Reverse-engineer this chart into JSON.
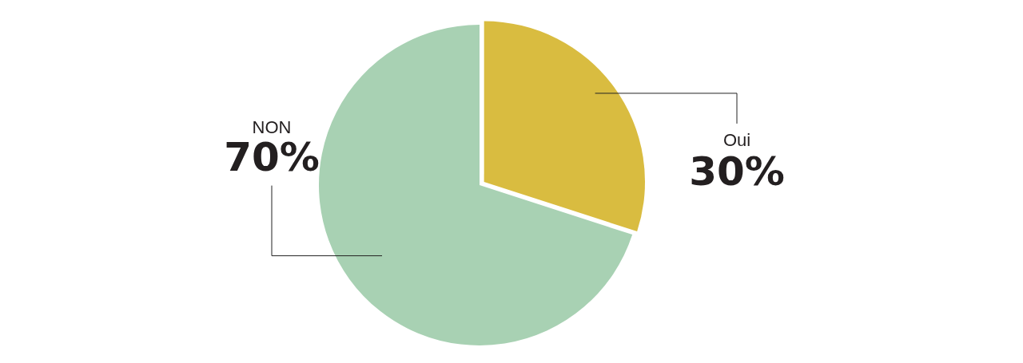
{
  "chart_data": {
    "type": "pie",
    "categories": [
      "Oui",
      "NON"
    ],
    "values": [
      30,
      70
    ],
    "colors": [
      "#d9bc40",
      "#a8d1b3"
    ],
    "value_labels": [
      "30%",
      "70%"
    ],
    "legend": false
  }
}
